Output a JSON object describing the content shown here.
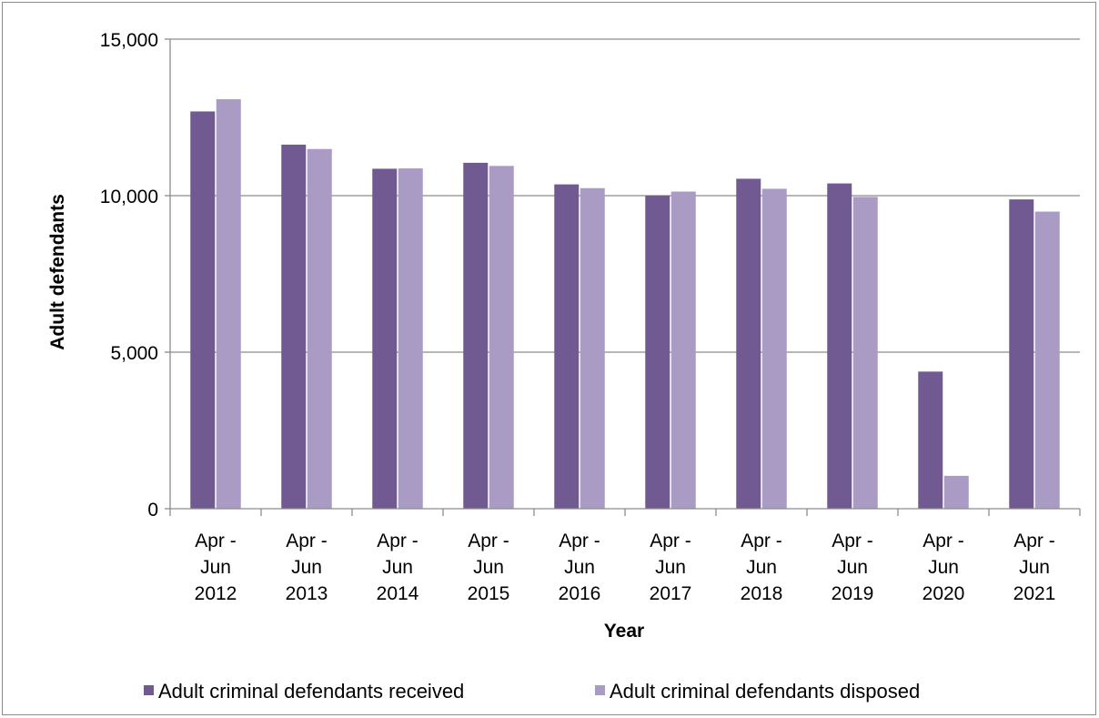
{
  "chart_data": {
    "type": "bar",
    "title": "",
    "xlabel": "Year",
    "ylabel": "Adult defendants",
    "ylim": [
      0,
      15000
    ],
    "yticks": [
      0,
      5000,
      10000,
      15000
    ],
    "ytick_labels": [
      "0",
      "5,000",
      "10,000",
      "15,000"
    ],
    "categories": [
      [
        "Apr -",
        "Jun",
        "2012"
      ],
      [
        "Apr -",
        "Jun",
        "2013"
      ],
      [
        "Apr -",
        "Jun",
        "2014"
      ],
      [
        "Apr -",
        "Jun",
        "2015"
      ],
      [
        "Apr -",
        "Jun",
        "2016"
      ],
      [
        "Apr -",
        "Jun",
        "2017"
      ],
      [
        "Apr -",
        "Jun",
        "2018"
      ],
      [
        "Apr -",
        "Jun",
        "2019"
      ],
      [
        "Apr -",
        "Jun",
        "2020"
      ],
      [
        "Apr -",
        "Jun",
        "2021"
      ]
    ],
    "series": [
      {
        "name": "Adult criminal defendants received",
        "color": "#715a92",
        "values": [
          12690,
          11630,
          10860,
          11050,
          10360,
          10000,
          10540,
          10390,
          4380,
          9880
        ]
      },
      {
        "name": "Adult criminal defendants disposed",
        "color": "#a99bc3",
        "values": [
          13080,
          11490,
          10870,
          10950,
          10240,
          10130,
          10220,
          9960,
          1050,
          9490
        ]
      }
    ],
    "grid": true,
    "legend_position": "bottom"
  }
}
